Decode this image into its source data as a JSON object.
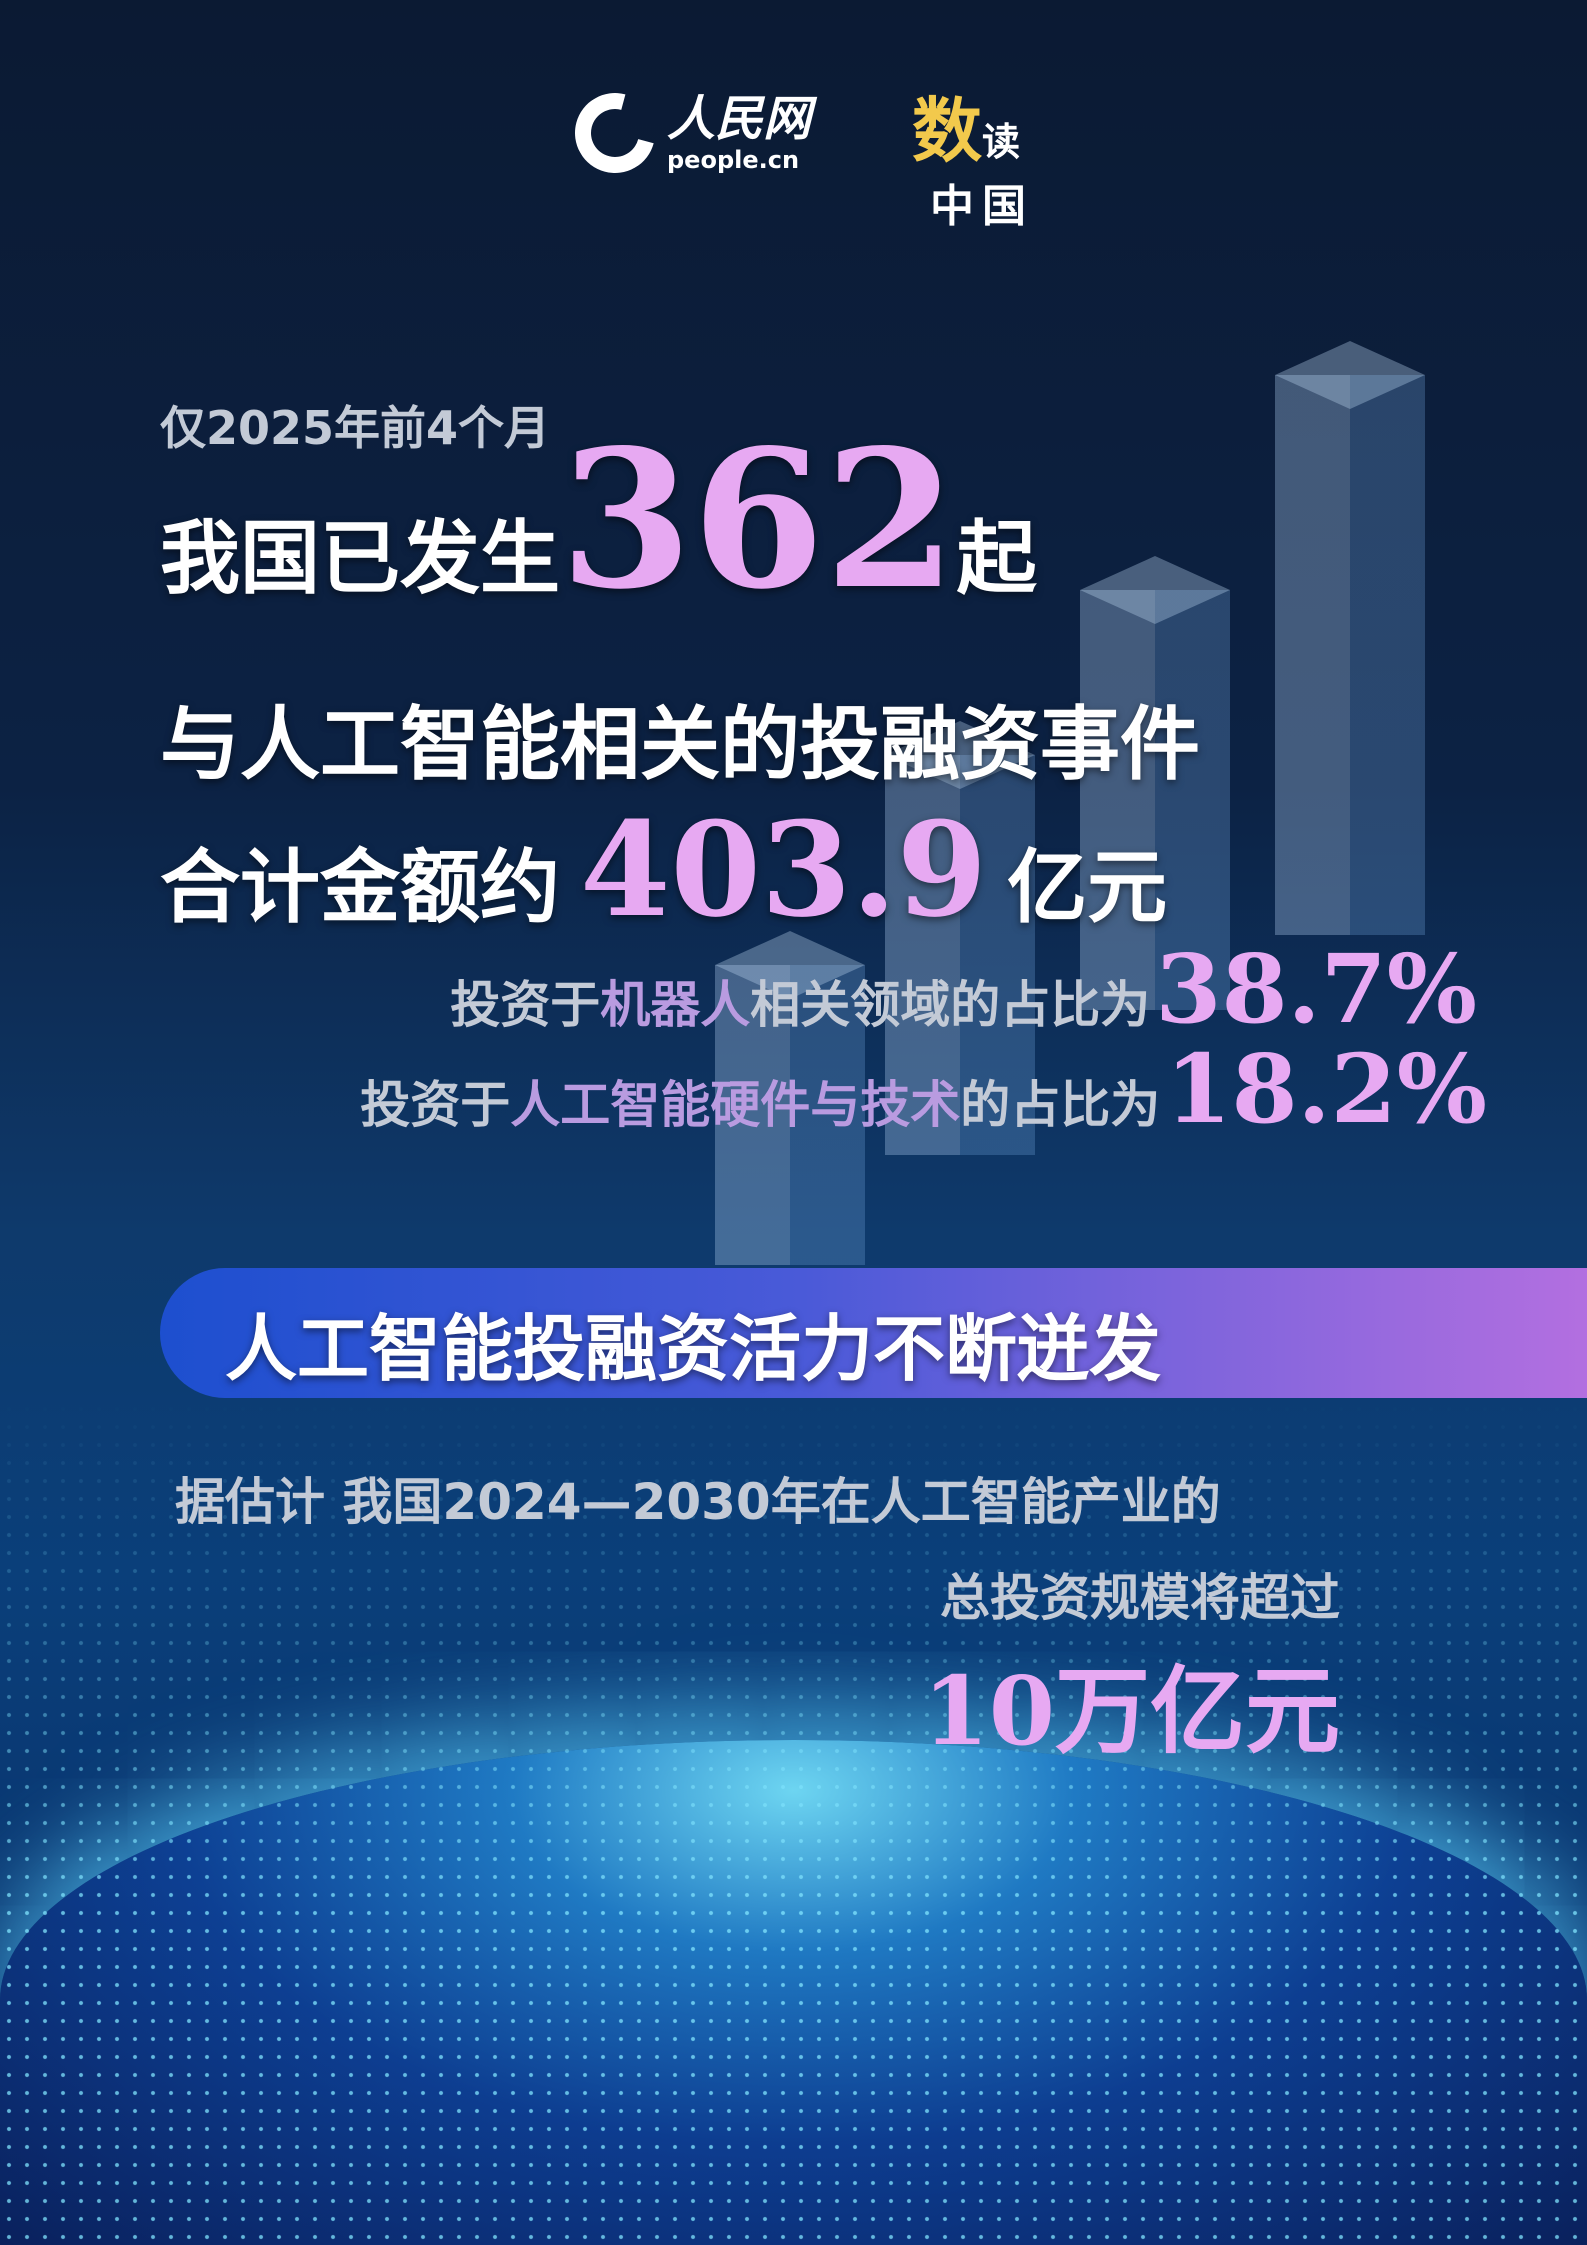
{
  "header": {
    "logo_text": "人民网",
    "logo_domain": "people.cn",
    "column_title_1": "数",
    "column_title_2": "读",
    "column_title_3": "中国"
  },
  "headline": {
    "period": "仅2025年前4个月",
    "line1_prefix": "我国已发生",
    "event_count": "362",
    "line1_suffix": "起",
    "line2": "与人工智能相关的投融资事件",
    "line3_prefix": "合计金额约",
    "total_amount": "403.9",
    "line3_suffix": "亿元"
  },
  "shares": [
    {
      "prefix": "投资于",
      "highlight": "机器人",
      "middle": "相关领域",
      "suffix": "的占比为",
      "value": "38.7%"
    },
    {
      "prefix": "投资于",
      "highlight": "人工智能硬件与技术",
      "middle": "",
      "suffix": "的占比为",
      "value": "18.2%"
    }
  ],
  "banner": {
    "title": "人工智能投融资活力不断迸发"
  },
  "forecast": {
    "line1": "据估计 我国2024—2030年在人工智能产业的",
    "line2": "总投资规模将超过",
    "value": "10万亿元"
  },
  "colors": {
    "accent_pink": "#e7a9f2",
    "highlight_purple": "#b99be0",
    "brand_yellow": "#f2c94c",
    "banner_start": "#1d4fcf",
    "banner_end": "#b36fe0"
  }
}
